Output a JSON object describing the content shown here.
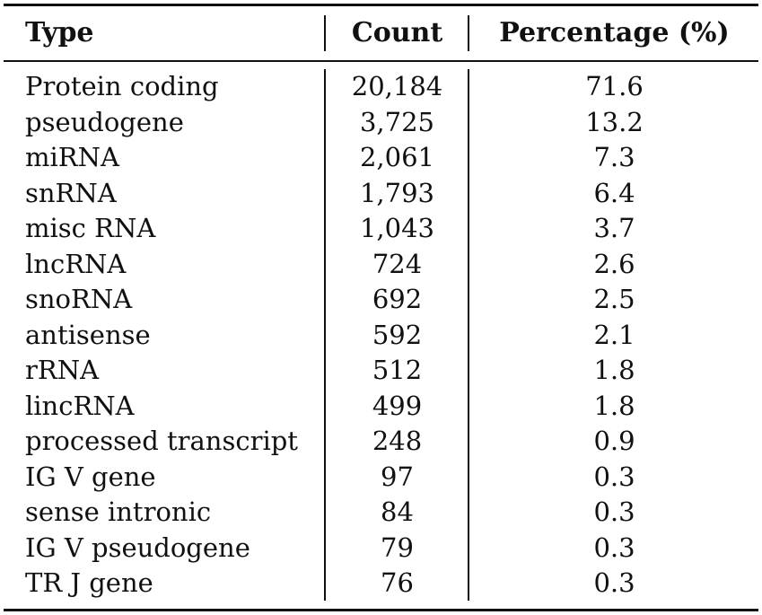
{
  "table": {
    "headers": [
      "Type",
      "Count",
      "Percentage (%)"
    ],
    "rows": [
      {
        "type": "Protein coding",
        "count": "20,184",
        "percentage": "71.6"
      },
      {
        "type": "pseudogene",
        "count": "3,725",
        "percentage": "13.2"
      },
      {
        "type": "miRNA",
        "count": "2,061",
        "percentage": "7.3"
      },
      {
        "type": "snRNA",
        "count": "1,793",
        "percentage": "6.4"
      },
      {
        "type": "misc RNA",
        "count": "1,043",
        "percentage": "3.7"
      },
      {
        "type": "lncRNA",
        "count": "724",
        "percentage": "2.6"
      },
      {
        "type": "snoRNA",
        "count": "692",
        "percentage": "2.5"
      },
      {
        "type": "antisense",
        "count": "592",
        "percentage": "2.1"
      },
      {
        "type": "rRNA",
        "count": "512",
        "percentage": "1.8"
      },
      {
        "type": "lincRNA",
        "count": "499",
        "percentage": "1.8"
      },
      {
        "type": "processed transcript",
        "count": "248",
        "percentage": "0.9"
      },
      {
        "type": "IG V gene",
        "count": "97",
        "percentage": "0.3"
      },
      {
        "type": "sense intronic",
        "count": "84",
        "percentage": "0.3"
      },
      {
        "type": "IG V pseudogene",
        "count": "79",
        "percentage": "0.3"
      },
      {
        "type": "TR J gene",
        "count": "76",
        "percentage": "0.3"
      }
    ]
  }
}
